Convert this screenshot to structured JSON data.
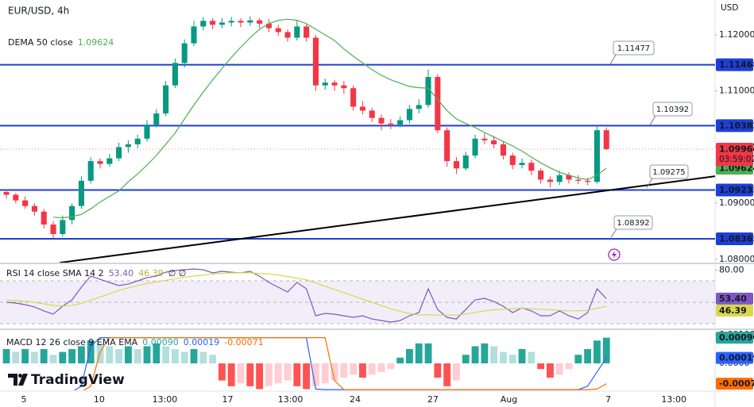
{
  "watermark": "TradingView",
  "chart_data": [
    {
      "type": "candlestick",
      "title": "EUR/USD, 4h",
      "currency": "USD",
      "xlim": [
        -0.68,
        75.59
      ],
      "ylim": [
        1.07941,
        1.12622
      ],
      "xticks": [
        {
          "value": 1.86,
          "label": "5"
        },
        {
          "value": 9.9,
          "label": "10"
        },
        {
          "value": 16.9,
          "label": "13:00"
        },
        {
          "value": 23.6,
          "label": "17"
        },
        {
          "value": 30.3,
          "label": "13:00"
        },
        {
          "value": 37.2,
          "label": "24"
        },
        {
          "value": 45.5,
          "label": "27"
        },
        {
          "value": 53.6,
          "label": "Aug"
        },
        {
          "value": 64.2,
          "label": "7"
        },
        {
          "value": 71.2,
          "label": "13:00"
        }
      ],
      "yticks": [
        {
          "value": 1.12,
          "label": "1.12000"
        },
        {
          "value": 1.11,
          "label": "1.11000"
        },
        {
          "value": 1.1,
          "label": "1.10000"
        },
        {
          "value": 1.09,
          "label": "1.09000"
        },
        {
          "value": 1.08,
          "label": "1.08000"
        }
      ],
      "up_color": "#089981",
      "down_color": "#f23645",
      "ohlc": [
        [
          1.092,
          1.0925,
          1.0908,
          1.0915
        ],
        [
          1.0915,
          1.0918,
          1.09,
          1.0905
        ],
        [
          1.0905,
          1.0912,
          1.089,
          1.0895
        ],
        [
          1.0895,
          1.09,
          1.0878,
          1.0885
        ],
        [
          1.0885,
          1.089,
          1.0855,
          1.0862
        ],
        [
          1.0862,
          1.0868,
          1.0838,
          1.0845
        ],
        [
          1.0845,
          1.0878,
          1.084,
          1.087
        ],
        [
          1.087,
          1.09,
          1.0862,
          1.0895
        ],
        [
          1.0895,
          1.0948,
          1.089,
          1.094
        ],
        [
          1.094,
          1.0982,
          1.0935,
          1.0975
        ],
        [
          1.0975,
          1.098,
          1.0962,
          1.097
        ],
        [
          1.097,
          1.0988,
          1.0965,
          1.098
        ],
        [
          1.098,
          1.1008,
          1.0975,
          1.1
        ],
        [
          1.1,
          1.1012,
          1.099,
          1.1005
        ],
        [
          1.1005,
          1.1022,
          1.0998,
          1.1015
        ],
        [
          1.1015,
          1.1048,
          1.101,
          1.104
        ],
        [
          1.104,
          1.1068,
          1.1035,
          1.106
        ],
        [
          1.106,
          1.1118,
          1.1055,
          1.111
        ],
        [
          1.111,
          1.1158,
          1.1105,
          1.115
        ],
        [
          1.115,
          1.1192,
          1.1142,
          1.1185
        ],
        [
          1.1185,
          1.1225,
          1.118,
          1.1215
        ],
        [
          1.1215,
          1.1232,
          1.1208,
          1.1225
        ],
        [
          1.1225,
          1.123,
          1.121,
          1.1218
        ],
        [
          1.1218,
          1.123,
          1.1212,
          1.1222
        ],
        [
          1.1222,
          1.1232,
          1.1215,
          1.1225
        ],
        [
          1.1225,
          1.123,
          1.1214,
          1.1222
        ],
        [
          1.1222,
          1.1233,
          1.1216,
          1.1226
        ],
        [
          1.1226,
          1.123,
          1.1212,
          1.122
        ],
        [
          1.122,
          1.1228,
          1.1205,
          1.1212
        ],
        [
          1.1212,
          1.1218,
          1.1198,
          1.1205
        ],
        [
          1.1205,
          1.121,
          1.1188,
          1.1195
        ],
        [
          1.1195,
          1.1225,
          1.119,
          1.1215
        ],
        [
          1.1215,
          1.122,
          1.1188,
          1.1195
        ],
        [
          1.1195,
          1.12,
          1.11,
          1.111
        ],
        [
          1.111,
          1.1122,
          1.1102,
          1.1115
        ],
        [
          1.1115,
          1.112,
          1.11,
          1.111
        ],
        [
          1.111,
          1.1118,
          1.1095,
          1.1105
        ],
        [
          1.1105,
          1.111,
          1.1065,
          1.1072
        ],
        [
          1.1072,
          1.1082,
          1.1058,
          1.1065
        ],
        [
          1.1065,
          1.107,
          1.1045,
          1.1052
        ],
        [
          1.1052,
          1.1058,
          1.103,
          1.1042
        ],
        [
          1.1042,
          1.105,
          1.1032,
          1.104
        ],
        [
          1.104,
          1.1055,
          1.1035,
          1.1048
        ],
        [
          1.1048,
          1.1075,
          1.1042,
          1.1068
        ],
        [
          1.1068,
          1.1085,
          1.106,
          1.1075
        ],
        [
          1.1075,
          1.1138,
          1.107,
          1.1125
        ],
        [
          1.1125,
          1.113,
          1.1025,
          1.103
        ],
        [
          1.103,
          1.1035,
          1.0965,
          1.0975
        ],
        [
          1.0975,
          1.0982,
          1.0952,
          1.0962
        ],
        [
          1.0962,
          1.0992,
          1.0958,
          1.0985
        ],
        [
          1.0985,
          1.1022,
          1.098,
          1.1015
        ],
        [
          1.1015,
          1.1025,
          1.1005,
          1.1012
        ],
        [
          1.1012,
          1.102,
          1.0998,
          1.1005
        ],
        [
          1.1005,
          1.101,
          1.0978,
          1.0985
        ],
        [
          1.0985,
          1.099,
          1.096,
          1.0968
        ],
        [
          1.0968,
          1.098,
          1.0962,
          1.0972
        ],
        [
          1.0972,
          1.0978,
          1.095,
          1.0958
        ],
        [
          1.0958,
          1.0962,
          1.0935,
          1.0942
        ],
        [
          1.0942,
          1.0948,
          1.0928,
          1.0938
        ],
        [
          1.0938,
          1.0958,
          1.0932,
          1.095
        ],
        [
          1.095,
          1.0955,
          1.0935,
          1.0942
        ],
        [
          1.0942,
          1.095,
          1.0934,
          1.094
        ],
        [
          1.094,
          1.0945,
          1.0932,
          1.0938
        ],
        [
          1.0938,
          1.1038,
          1.0935,
          1.103
        ],
        [
          1.103,
          1.1035,
          1.0995,
          1.09964
        ]
      ],
      "countdown": "03:59:02",
      "series": [
        {
          "name": "DEMA 50 close",
          "color": "#4caf50",
          "values": [
            null,
            null,
            null,
            null,
            null,
            1.0875,
            1.0874,
            1.0876,
            1.088,
            1.089,
            1.0902,
            1.0912,
            1.0922,
            1.0938,
            1.0952,
            1.0968,
            1.0985,
            1.1005,
            1.1025,
            1.105,
            1.1075,
            1.1098,
            1.112,
            1.114,
            1.116,
            1.1178,
            1.1195,
            1.121,
            1.122,
            1.1226,
            1.1228,
            1.1226,
            1.122,
            1.121,
            1.12,
            1.119,
            1.1175,
            1.1162,
            1.115,
            1.1138,
            1.1128,
            1.112,
            1.1114,
            1.1108,
            1.1106,
            1.1105,
            1.1085,
            1.1065,
            1.105,
            1.1042,
            1.1035,
            1.1026,
            1.1018,
            1.101,
            1.1002,
            1.0993,
            1.0982,
            1.0972,
            1.0963,
            1.0955,
            1.095,
            1.0945,
            1.0942,
            1.095,
            1.09624
          ]
        }
      ],
      "levels": [
        {
          "value": 1.11468,
          "color": "#1e3fd6"
        },
        {
          "value": 1.10382,
          "color": "#1e3fd6"
        },
        {
          "value": 1.09235,
          "color": "#1e3fd6"
        },
        {
          "value": 1.08365,
          "color": "#1e3fd6"
        }
      ],
      "annotations": [
        1.11477,
        1.10392,
        1.09275,
        1.08392
      ],
      "trendline": {
        "x": [
          5.7,
          75.59
        ],
        "y": [
          1.0794,
          1.0948
        ],
        "color": "#000000"
      }
    },
    {
      "type": "line",
      "title": "RSI 14 close SMA 14 2",
      "extra": "∅ ∅",
      "xlim": [
        -0.68,
        75.59
      ],
      "ylim": [
        25.56,
        85.56
      ],
      "yticks": [
        {
          "value": 80,
          "label": "80.00"
        }
      ],
      "band": [
        30,
        70
      ],
      "midline": 50,
      "series": [
        {
          "color": "#7e57c2",
          "last_label": "53.40",
          "values": [
            50.0,
            49.3,
            47.8,
            45.6,
            41.9,
            38.9,
            46.3,
            52.2,
            64.1,
            74.4,
            71.5,
            68.5,
            65.6,
            67.0,
            70.0,
            73.0,
            74.4,
            78.1,
            79.6,
            80.4,
            81.1,
            80.4,
            77.4,
            78.9,
            78.1,
            77.4,
            78.9,
            74.4,
            68.5,
            64.1,
            59.6,
            68.5,
            62.6,
            37.4,
            39.6,
            38.9,
            37.4,
            35.9,
            37.4,
            34.4,
            33.0,
            31.5,
            33.0,
            37.4,
            40.4,
            62.6,
            43.3,
            35.9,
            34.4,
            43.3,
            52.2,
            53.7,
            50.7,
            46.3,
            40.4,
            44.8,
            41.9,
            37.4,
            37.4,
            41.9,
            37.4,
            34.4,
            40.4,
            62.6,
            53.4
          ]
        },
        {
          "color": "#d8d84a",
          "values": [
            52,
            51.5,
            51,
            50,
            48.5,
            47,
            46.5,
            47,
            49,
            52,
            55,
            58,
            61,
            63.5,
            65.5,
            67.5,
            69,
            70.5,
            72,
            73.5,
            74.5,
            75.5,
            76.5,
            77,
            77.5,
            77.5,
            77.5,
            77,
            76.5,
            75.5,
            74,
            72.5,
            71,
            68,
            65,
            62,
            59,
            56,
            53,
            50,
            47,
            44,
            41.5,
            39.5,
            38,
            38.5,
            38,
            38,
            38,
            39,
            40.5,
            42,
            43,
            43.5,
            44,
            44.5,
            44,
            43.5,
            43,
            42.5,
            42,
            42,
            42.5,
            44.5,
            46.39
          ]
        }
      ]
    },
    {
      "type": "macd",
      "title": "MACD 12 26 close 9 EMA EMA",
      "xlim": [
        -0.68,
        75.59
      ],
      "ylim": [
        -0.000944,
        0.001167
      ],
      "yticks": [
        {
          "value": 0.001,
          "label": "0.00100"
        },
        {
          "value": 0,
          "label": "0.0000"
        }
      ],
      "colors": [
        "#26a69a",
        "#b2dfdb",
        "#ffcdd2",
        "#ff5252"
      ],
      "series": [
        {
          "kind": "histogram",
          "color": "#26a69a",
          "last_label": "0.00090",
          "values": [
            0.0005,
            0.0004,
            0.0005,
            0.0004,
            0.0005,
            0.0003,
            0.0004,
            0.0005,
            0.0006,
            0.0008,
            0.0007,
            0.0006,
            0.0005,
            0.0006,
            0.0005,
            0.0006,
            0.0007,
            0.0006,
            0.0005,
            0.0004,
            0.0005,
            0.0004,
            0.0003,
            -0.0006,
            -0.0008,
            -0.0007,
            -0.0008,
            -0.0009,
            -0.0008,
            -0.0007,
            -0.0006,
            -0.0008,
            -0.0009,
            -0.0008,
            -0.0007,
            -0.0006,
            -0.0005,
            -0.0004,
            -0.0005,
            -0.0004,
            -0.0003,
            -0.0002,
            0.0002,
            0.0005,
            0.0007,
            0.0007,
            -0.0005,
            -0.0008,
            -0.0006,
            0.0003,
            0.0006,
            0.0007,
            0.0006,
            0.0004,
            0.0003,
            0.0005,
            0.0004,
            -0.0002,
            -0.0005,
            -0.0004,
            -0.0002,
            0.0003,
            0.0005,
            0.0008,
            0.0009
          ]
        },
        {
          "kind": "line",
          "color": "#2962ff",
          "values": [
            -0.001,
            -0.001,
            -0.001,
            -0.001,
            -0.001,
            -0.001,
            -0.001,
            -0.001,
            -0.0008,
            0.0006,
            0.0009,
            0.0009,
            0.0009,
            0.0009,
            0.0009,
            0.0009,
            0.0009,
            0.0009,
            0.0009,
            0.0009,
            0.0009,
            0.0009,
            0.0009,
            0.0009,
            0.0009,
            0.0009,
            0.0009,
            0.0009,
            0.0009,
            0.0009,
            0.0009,
            0.0009,
            0.0009,
            -0.0009,
            -0.00092,
            -0.00092,
            -0.00092,
            -0.00092,
            -0.00092,
            -0.00092,
            -0.00092,
            -0.00092,
            -0.00092,
            -0.00092,
            -0.00092,
            -0.00092,
            -0.00092,
            -0.00092,
            -0.00092,
            -0.00092,
            -0.00092,
            -0.00092,
            -0.00092,
            -0.00092,
            -0.00092,
            -0.00092,
            -0.00092,
            -0.00092,
            -0.00092,
            -0.00092,
            -0.00092,
            -0.00092,
            -0.0008,
            -0.0003,
            0.00019
          ]
        },
        {
          "kind": "line",
          "color": "#ff6d00",
          "values": [
            -0.001,
            -0.001,
            -0.001,
            -0.001,
            -0.001,
            -0.001,
            -0.001,
            -0.001,
            -0.001,
            -0.0008,
            0.0004,
            0.0009,
            0.0009,
            0.0009,
            0.0009,
            0.0009,
            0.0009,
            0.0009,
            0.0009,
            0.0009,
            0.0009,
            0.0009,
            0.0009,
            0.0009,
            0.0009,
            0.0009,
            0.0009,
            0.0009,
            0.0009,
            0.0009,
            0.0009,
            0.0009,
            0.0009,
            0.0009,
            0.0009,
            -0.0006,
            -0.00092,
            -0.00092,
            -0.00092,
            -0.00092,
            -0.00092,
            -0.00092,
            -0.00092,
            -0.00092,
            -0.00092,
            -0.00092,
            -0.00092,
            -0.00092,
            -0.00092,
            -0.00092,
            -0.00092,
            -0.00092,
            -0.00092,
            -0.00092,
            -0.00092,
            -0.00092,
            -0.00092,
            -0.00092,
            -0.00092,
            -0.00092,
            -0.00092,
            -0.00092,
            -0.00092,
            -0.0009,
            -0.00071
          ]
        }
      ]
    }
  ]
}
